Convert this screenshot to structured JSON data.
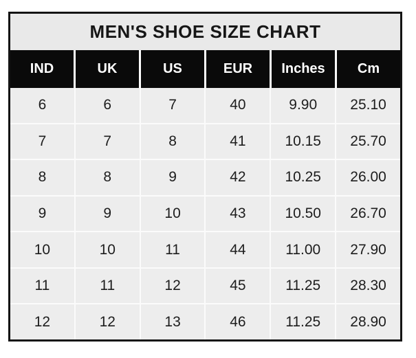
{
  "chart_data": {
    "type": "table",
    "title": "MEN'S SHOE SIZE CHART",
    "columns": [
      "IND",
      "UK",
      "US",
      "EUR",
      "Inches",
      "Cm"
    ],
    "rows": [
      [
        "6",
        "6",
        "7",
        "40",
        "9.90",
        "25.10"
      ],
      [
        "7",
        "7",
        "8",
        "41",
        "10.15",
        "25.70"
      ],
      [
        "8",
        "8",
        "9",
        "42",
        "10.25",
        "26.00"
      ],
      [
        "9",
        "9",
        "10",
        "43",
        "10.50",
        "26.70"
      ],
      [
        "10",
        "10",
        "11",
        "44",
        "11.00",
        "27.90"
      ],
      [
        "11",
        "11",
        "12",
        "45",
        "11.25",
        "28.30"
      ],
      [
        "12",
        "12",
        "13",
        "46",
        "11.25",
        "28.90"
      ]
    ]
  },
  "colors": {
    "title_bg": "#e9e9e9",
    "header_bg": "#0a0a0a",
    "header_text": "#ffffff",
    "cell_bg": "#ededed",
    "grid_line": "#fbfbfb",
    "outer_border": "#141414",
    "body_text": "#1d1d1d"
  }
}
